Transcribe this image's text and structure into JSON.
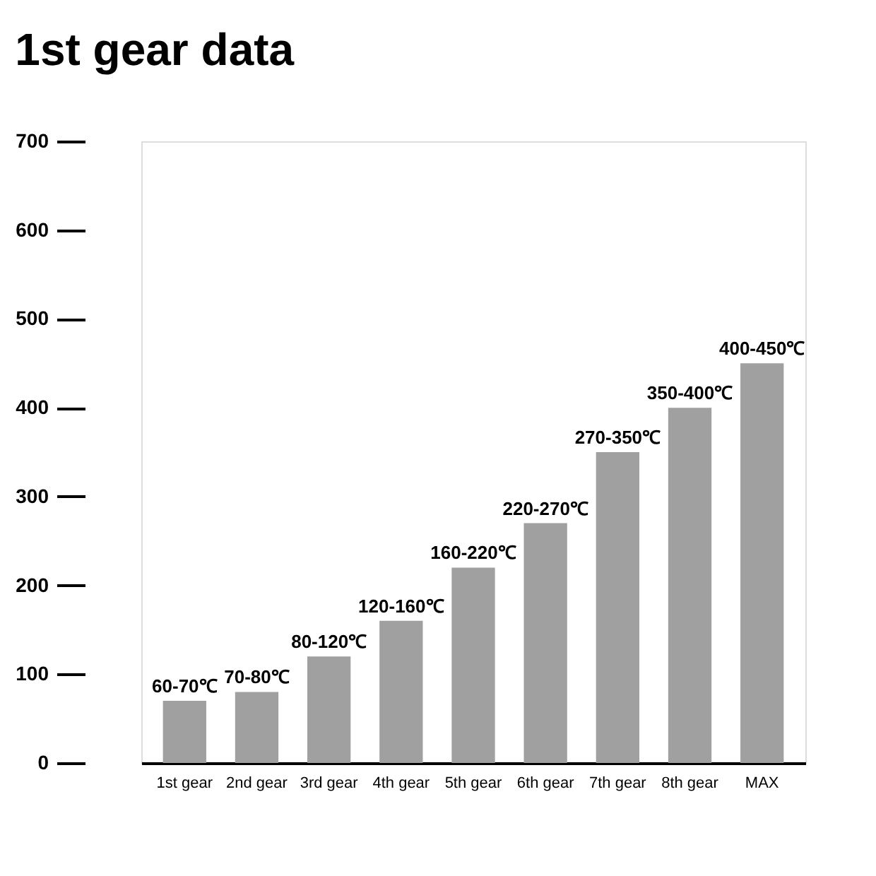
{
  "chart_data": {
    "type": "bar",
    "title": "1st gear data",
    "categories": [
      "1st gear",
      "2nd gear",
      "3rd gear",
      "4th gear",
      "5th gear",
      "6th gear",
      "7th gear",
      "8th gear",
      "MAX"
    ],
    "values": [
      70,
      80,
      120,
      160,
      220,
      270,
      350,
      400,
      450
    ],
    "value_labels": [
      "60-70℃",
      "70-80℃",
      "80-120℃",
      "120-160℃",
      "160-220℃",
      "220-270℃",
      "270-350℃",
      "350-400℃",
      "400-450℃"
    ],
    "color": "#a0a0a0",
    "ylim": [
      0,
      700
    ],
    "yticks": [
      0,
      100,
      200,
      300,
      400,
      500,
      600,
      700
    ],
    "grid": false
  }
}
